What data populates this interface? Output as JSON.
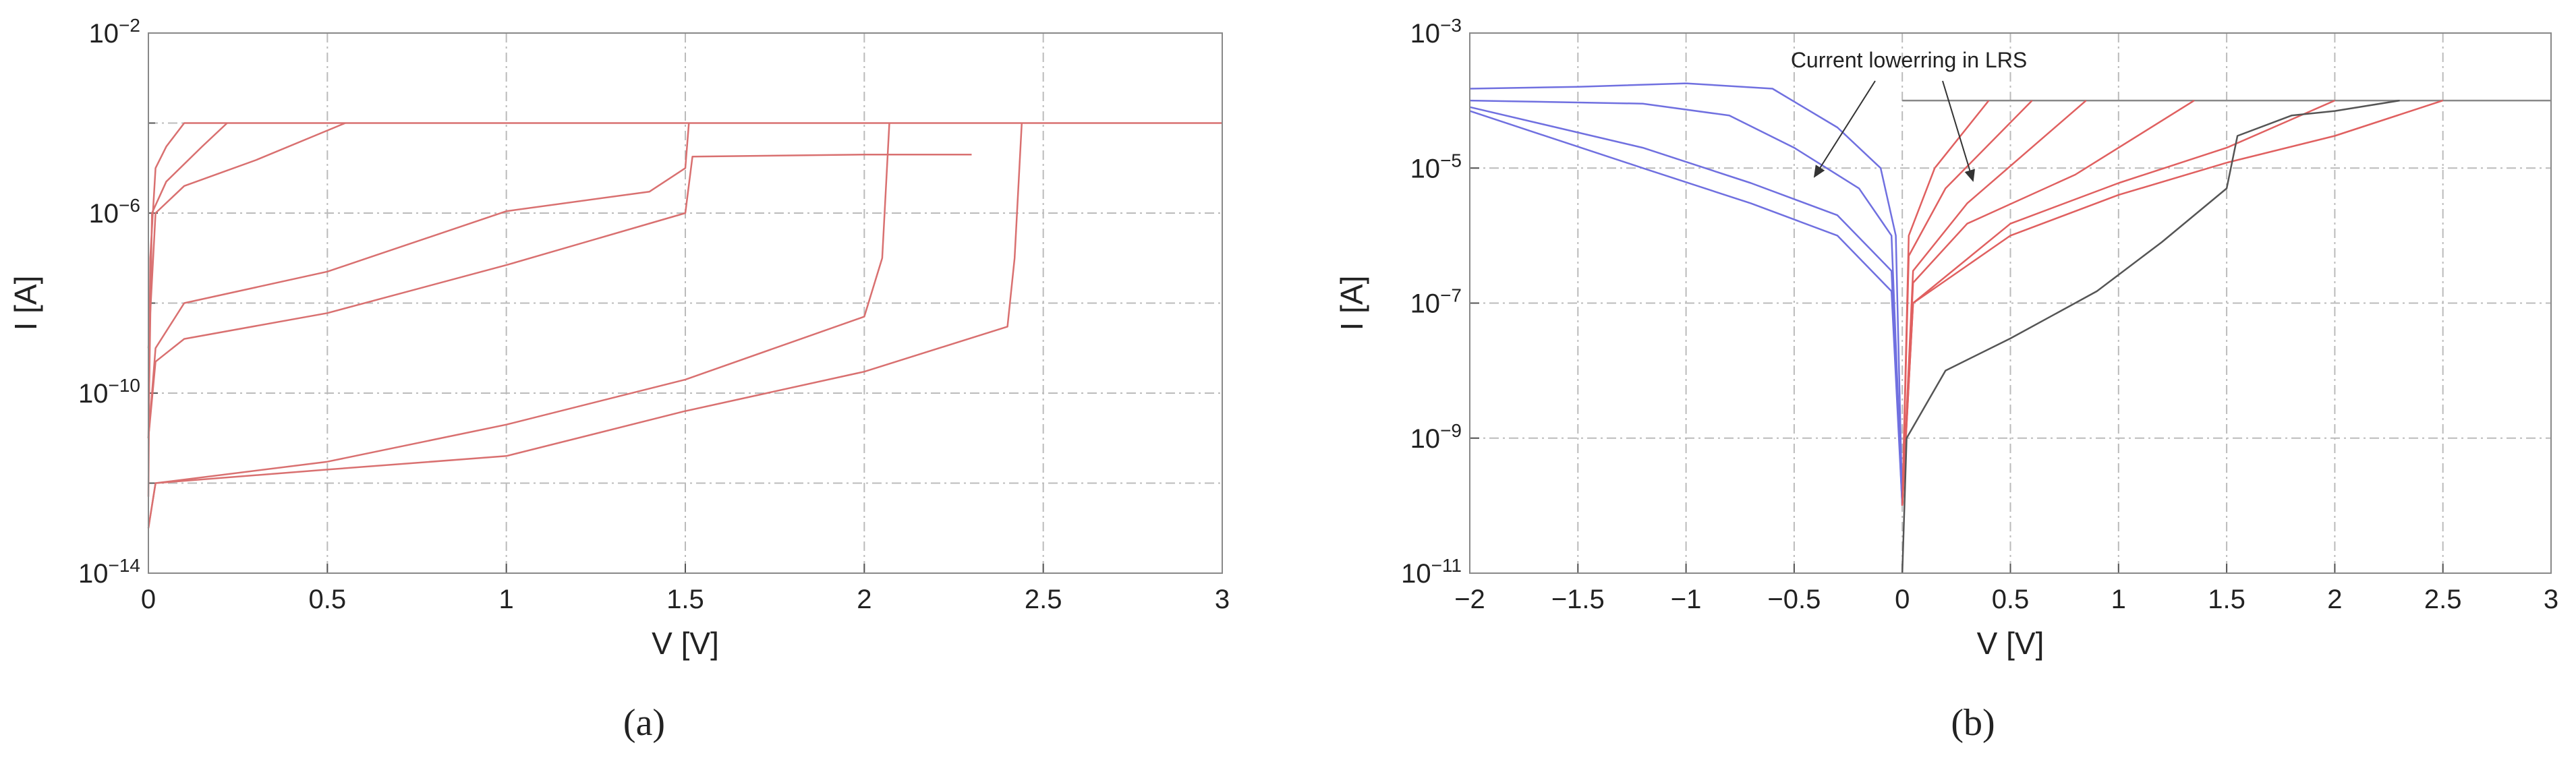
{
  "chart_data": [
    {
      "type": "line",
      "panel": "(a)",
      "xlabel": "V [V]",
      "ylabel": "I [A]",
      "ylog": true,
      "grid": true,
      "xlim": [
        0,
        3
      ],
      "xticks": [
        0,
        0.5,
        1,
        1.5,
        2,
        2.5,
        3
      ],
      "ylim": [
        1e-14,
        0.01
      ],
      "yticks": [
        {
          "value": 1e-14,
          "label": "10−14"
        },
        {
          "value": 1e-10,
          "label": "10−10"
        },
        {
          "value": 1e-06,
          "label": "10−6"
        },
        {
          "value": 0.01,
          "label": "10−2"
        }
      ],
      "minor_yticks": [
        1e-12,
        1e-08,
        0.0001
      ],
      "series": [
        {
          "color": "#d97070",
          "x": [
            0,
            0.005,
            0.02,
            0.05,
            0.1,
            3
          ],
          "values": [
            5e-13,
            1e-07,
            1e-05,
            3e-05,
            0.0001,
            0.0001
          ]
        },
        {
          "color": "#d97070",
          "x": [
            0,
            0.01,
            0.05,
            0.15,
            0.22
          ],
          "values": [
            1e-11,
            1e-06,
            5e-06,
            3e-05,
            0.0001
          ]
        },
        {
          "color": "#d97070",
          "x": [
            0,
            0.02,
            0.1,
            0.3,
            0.55
          ],
          "values": [
            1e-09,
            1e-06,
            4e-06,
            1.5e-05,
            0.0001
          ]
        },
        {
          "color": "#d97070",
          "x": [
            0,
            0.02,
            0.1,
            0.5,
            1,
            1.4,
            1.5,
            1.51
          ],
          "values": [
            1e-11,
            1e-09,
            1e-08,
            5e-08,
            1.1e-06,
            3e-06,
            1e-05,
            0.0001
          ]
        },
        {
          "color": "#d97070",
          "x": [
            0,
            0.02,
            0.1,
            0.5,
            1,
            1.5,
            1.52,
            2,
            2.3
          ],
          "values": [
            1e-11,
            5e-10,
            1.6e-09,
            6e-09,
            7e-08,
            1e-06,
            1.8e-05,
            2e-05,
            2e-05
          ]
        },
        {
          "color": "#d97070",
          "x": [
            0,
            0.02,
            0.5,
            1,
            1.5,
            2,
            2.05,
            2.07
          ],
          "values": [
            1e-13,
            1e-12,
            3e-12,
            2e-11,
            2e-10,
            5e-09,
            1e-07,
            0.0001
          ]
        },
        {
          "color": "#d97070",
          "x": [
            0,
            0.02,
            0.5,
            1,
            1.5,
            2,
            2.4,
            2.42,
            2.44
          ],
          "values": [
            1e-13,
            1e-12,
            2e-12,
            4e-12,
            4e-11,
            3e-10,
            3e-09,
            1e-07,
            0.0001
          ]
        }
      ]
    },
    {
      "type": "line",
      "panel": "(b)",
      "xlabel": "V [V]",
      "ylabel": "I [A]",
      "ylog": true,
      "grid": true,
      "annotation": "Current lowerring in LRS",
      "xlim": [
        -2,
        3
      ],
      "xticks": [
        {
          "value": -2,
          "label": "−2"
        },
        {
          "value": -1.5,
          "label": "−1.5"
        },
        {
          "value": -1,
          "label": "−1"
        },
        {
          "value": -0.5,
          "label": "−0.5"
        },
        0,
        0.5,
        1,
        1.5,
        2,
        2.5,
        3
      ],
      "ylim": [
        1e-11,
        0.001
      ],
      "yticks": [
        {
          "value": 1e-11,
          "label": "10−11"
        },
        {
          "value": 1e-09,
          "label": "10−9"
        },
        {
          "value": 1e-07,
          "label": "10−7"
        },
        {
          "value": 1e-05,
          "label": "10−5"
        },
        {
          "value": 0.001,
          "label": "10−3"
        }
      ],
      "series": [
        {
          "color": "#7070e0",
          "x": [
            -2,
            -1.5,
            -1,
            -0.6,
            -0.3,
            -0.1,
            -0.03,
            0
          ],
          "values": [
            0.00015,
            0.00016,
            0.00018,
            0.00015,
            4e-05,
            1e-05,
            1e-06,
            1e-10
          ]
        },
        {
          "color": "#7070e0",
          "x": [
            -2,
            -1.2,
            -0.8,
            -0.5,
            -0.2,
            -0.05,
            0
          ],
          "values": [
            0.0001,
            9e-05,
            6e-05,
            2e-05,
            5e-06,
            1e-06,
            1e-10
          ]
        },
        {
          "color": "#7070e0",
          "x": [
            -2,
            -1.2,
            -0.7,
            -0.3,
            -0.05,
            0
          ],
          "values": [
            8e-05,
            2e-05,
            6e-06,
            2e-06,
            3e-07,
            1e-10
          ]
        },
        {
          "color": "#7070e0",
          "x": [
            -2,
            -1.2,
            -0.7,
            -0.3,
            -0.05,
            0
          ],
          "values": [
            7e-05,
            1e-05,
            3e-06,
            1e-06,
            1.5e-07,
            1e-10
          ]
        },
        {
          "color": "#888888",
          "x": [
            0,
            3
          ],
          "values": [
            0.0001,
            0.0001
          ]
        },
        {
          "color": "#e06060",
          "x": [
            0,
            0.03,
            0.15,
            0.4
          ],
          "values": [
            1e-10,
            1e-06,
            1e-05,
            0.0001
          ]
        },
        {
          "color": "#e06060",
          "x": [
            0,
            0.03,
            0.2,
            0.6
          ],
          "values": [
            1e-10,
            5e-07,
            5e-06,
            0.0001
          ]
        },
        {
          "color": "#e06060",
          "x": [
            0,
            0.05,
            0.3,
            0.85
          ],
          "values": [
            1e-10,
            3e-07,
            3e-06,
            0.0001
          ]
        },
        {
          "color": "#e06060",
          "x": [
            0,
            0.05,
            0.3,
            0.8,
            1.35
          ],
          "values": [
            1e-10,
            2e-07,
            1.5e-06,
            8e-06,
            0.0001
          ]
        },
        {
          "color": "#e06060",
          "x": [
            0,
            0.05,
            0.5,
            1,
            1.5,
            2
          ],
          "values": [
            1e-10,
            1e-07,
            1.5e-06,
            6e-06,
            2e-05,
            0.0001
          ]
        },
        {
          "color": "#e06060",
          "x": [
            0,
            0.05,
            0.5,
            1,
            1.5,
            2,
            2.5
          ],
          "values": [
            1e-10,
            1e-07,
            1e-06,
            4e-06,
            1.2e-05,
            3e-05,
            0.0001
          ]
        },
        {
          "color": "#555555",
          "x": [
            0,
            0.02,
            0.2,
            0.5,
            0.9,
            1.2,
            1.5,
            1.55,
            1.8,
            2,
            2.3
          ],
          "values": [
            1e-11,
            1e-09,
            1e-08,
            3e-08,
            1.5e-07,
            8e-07,
            5e-06,
            3e-05,
            6e-05,
            7e-05,
            0.0001
          ]
        }
      ]
    }
  ]
}
